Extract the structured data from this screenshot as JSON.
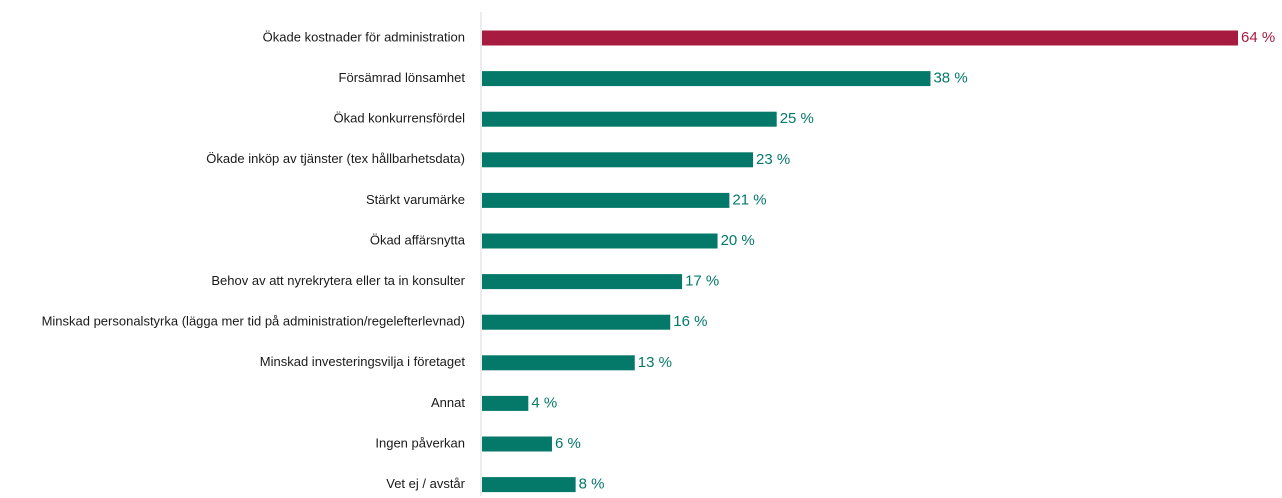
{
  "colors": {
    "highlight": "#a61b3f",
    "default": "#04796a",
    "axis": "#d9d9d9",
    "label_text": "#1a1a1a"
  },
  "chart_data": {
    "type": "bar",
    "orientation": "horizontal",
    "categories": [
      "Ökade kostnader för administration",
      "Försämrad lönsamhet",
      "Ökad konkurrensfördel",
      "Ökade inköp av tjänster (tex hållbarhetsdata)",
      "Stärkt varumärke",
      "Ökad affärsnytta",
      "Behov av att nyrekrytera eller ta in konsulter",
      "Minskad personalstyrka (lägga mer tid på administration/regelefterlevnad)",
      "Minskad investeringsvilja i företaget",
      "Annat",
      "Ingen påverkan",
      "Vet ej / avstår"
    ],
    "values": [
      64,
      38,
      25,
      23,
      21,
      20,
      17,
      16,
      13,
      4,
      6,
      8
    ],
    "value_labels": [
      "64 %",
      "38 %",
      "25 %",
      "23 %",
      "21 %",
      "20 %",
      "17 %",
      "16 %",
      "13 %",
      "4 %",
      "6 %",
      "8 %"
    ],
    "highlight_index": 0,
    "xlim": [
      0,
      64
    ],
    "grid": false,
    "legend": "none",
    "title": "",
    "xlabel": "",
    "ylabel": ""
  }
}
